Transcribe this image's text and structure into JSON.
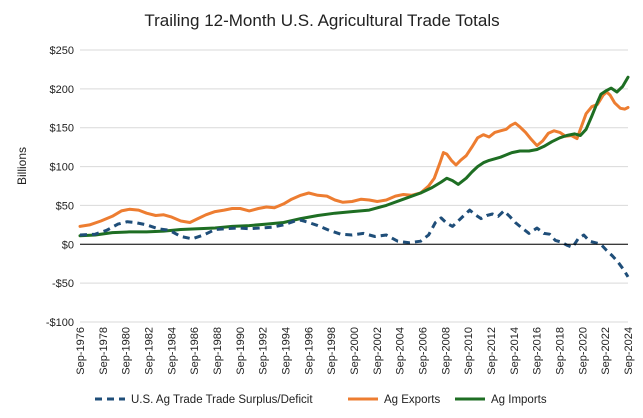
{
  "chart_data": {
    "type": "line",
    "title": "Trailing 12-Month U.S. Agricultural Trade Totals",
    "ylabel": "Billions",
    "xlabel": "",
    "ylim": [
      -100,
      250
    ],
    "yticks": [
      -100,
      -50,
      0,
      50,
      100,
      150,
      200,
      250
    ],
    "ytick_labels": [
      "-$100",
      "-$50",
      "$0",
      "$50",
      "$100",
      "$150",
      "$200",
      "$250"
    ],
    "xlim": [
      1976.67,
      2024.67
    ],
    "xtick_labels": [
      "Sep-1976",
      "Sep-1978",
      "Sep-1980",
      "Sep-1982",
      "Sep-1984",
      "Sep-1986",
      "Sep-1988",
      "Sep-1990",
      "Sep-1992",
      "Sep-1994",
      "Sep-1996",
      "Sep-1998",
      "Sep-2000",
      "Sep-2002",
      "Sep-2004",
      "Sep-2006",
      "Sep-2008",
      "Sep-2010",
      "Sep-2012",
      "Sep-2014",
      "Sep-2016",
      "Sep-2018",
      "Sep-2020",
      "Sep-2022",
      "Sep-2024"
    ],
    "grid": "horizontal",
    "legend_position": "bottom",
    "colors": {
      "surplus": "#1f4e79",
      "exports": "#ed7d31",
      "imports": "#1e6e23",
      "grid": "#d9d9d9",
      "axis": "#000000"
    },
    "series": [
      {
        "name": "U.S. Ag Trade Trade Surplus/Deficit",
        "style": "dashed",
        "x": [
          1976.67,
          1978,
          1979,
          1980,
          1980.8,
          1981.5,
          1982.5,
          1983.5,
          1984.5,
          1985.5,
          1986.5,
          1987.5,
          1988.5,
          1989.5,
          1990.5,
          1991.5,
          1992.5,
          1993.5,
          1994.5,
          1995.5,
          1996,
          1996.7,
          1997.5,
          1998.5,
          1999.5,
          2000.5,
          2001.5,
          2002.5,
          2003.5,
          2004.5,
          2005,
          2005.5,
          2006.5,
          2007.2,
          2007.8,
          2008.3,
          2008.8,
          2009.3,
          2009.8,
          2010.3,
          2010.8,
          2011.3,
          2011.8,
          2012.3,
          2012.8,
          2013.3,
          2013.8,
          2014.3,
          2014.8,
          2015.3,
          2016,
          2016.7,
          2017.3,
          2017.8,
          2018.3,
          2018.8,
          2019.3,
          2019.8,
          2020.3,
          2020.8,
          2021.3,
          2021.8,
          2022.3,
          2022.8,
          2023.3,
          2023.8,
          2024.3,
          2024.67
        ],
        "values": [
          12,
          13,
          18,
          26,
          29,
          28,
          25,
          20,
          18,
          10,
          7,
          12,
          19,
          20,
          21,
          20,
          21,
          22,
          25,
          30,
          31,
          28,
          24,
          18,
          13,
          12,
          14,
          10,
          12,
          4,
          3,
          2,
          4,
          12,
          28,
          34,
          27,
          23,
          30,
          37,
          44,
          38,
          33,
          37,
          39,
          36,
          43,
          36,
          28,
          22,
          14,
          21,
          14,
          13,
          5,
          3,
          -1,
          -4,
          7,
          12,
          4,
          2,
          0,
          -8,
          -15,
          -23,
          -33,
          -42
        ]
      },
      {
        "name": "Ag Exports",
        "style": "solid",
        "x": [
          1976.67,
          1977.5,
          1978.5,
          1979.5,
          1980.3,
          1981,
          1981.8,
          1982.5,
          1983.3,
          1984,
          1984.7,
          1985.5,
          1986.3,
          1987,
          1987.7,
          1988.5,
          1989.3,
          1990,
          1990.7,
          1991.5,
          1992.3,
          1993,
          1993.7,
          1994.5,
          1995.2,
          1996,
          1996.7,
          1997.5,
          1998.3,
          1999,
          1999.7,
          2000.5,
          2001.3,
          2002,
          2002.7,
          2003.5,
          2004.3,
          2005,
          2005.7,
          2006.5,
          2007.2,
          2007.7,
          2008.2,
          2008.5,
          2008.8,
          2009.2,
          2009.6,
          2010,
          2010.5,
          2011,
          2011.5,
          2012,
          2012.5,
          2013,
          2013.5,
          2014,
          2014.4,
          2014.8,
          2015.2,
          2015.7,
          2016.2,
          2016.7,
          2017.2,
          2017.7,
          2018.2,
          2018.7,
          2019.2,
          2019.7,
          2020.2,
          2020.6,
          2021,
          2021.5,
          2022,
          2022.5,
          2022.8,
          2023.1,
          2023.5,
          2024,
          2024.4,
          2024.67
        ],
        "values": [
          23,
          25,
          30,
          36,
          43,
          45,
          44,
          40,
          37,
          38,
          35,
          30,
          28,
          33,
          38,
          42,
          44,
          46,
          46,
          43,
          46,
          48,
          47,
          52,
          58,
          63,
          66,
          63,
          62,
          57,
          54,
          55,
          58,
          57,
          55,
          57,
          62,
          64,
          63,
          66,
          75,
          85,
          105,
          118,
          116,
          108,
          102,
          108,
          114,
          125,
          137,
          141,
          138,
          144,
          146,
          148,
          153,
          156,
          151,
          144,
          135,
          127,
          133,
          143,
          146,
          144,
          139,
          140,
          136,
          152,
          168,
          177,
          180,
          192,
          196,
          192,
          182,
          175,
          174,
          176
        ]
      },
      {
        "name": "Ag Imports",
        "style": "solid",
        "x": [
          1976.67,
          1978,
          1979.5,
          1981,
          1982.5,
          1984,
          1985.5,
          1987,
          1988.5,
          1990,
          1991.5,
          1993,
          1994.5,
          1996,
          1997.5,
          1999,
          2000.5,
          2002,
          2003.5,
          2005,
          2006.5,
          2007.5,
          2008.3,
          2008.8,
          2009.3,
          2009.8,
          2010.5,
          2011,
          2011.5,
          2012,
          2012.5,
          2013,
          2013.5,
          2014,
          2014.5,
          2015.2,
          2016,
          2016.7,
          2017.3,
          2018,
          2018.7,
          2019.3,
          2020,
          2020.5,
          2021,
          2021.5,
          2022,
          2022.3,
          2022.8,
          2023.2,
          2023.7,
          2024.2,
          2024.67
        ],
        "values": [
          11,
          12,
          15,
          16,
          16,
          17,
          19,
          20,
          21,
          23,
          24,
          26,
          28,
          33,
          37,
          40,
          42,
          44,
          50,
          58,
          66,
          73,
          80,
          85,
          82,
          77,
          85,
          93,
          100,
          105,
          108,
          110,
          112,
          115,
          118,
          120,
          120,
          122,
          126,
          132,
          137,
          140,
          142,
          140,
          148,
          165,
          183,
          193,
          198,
          201,
          196,
          203,
          215
        ]
      }
    ]
  }
}
